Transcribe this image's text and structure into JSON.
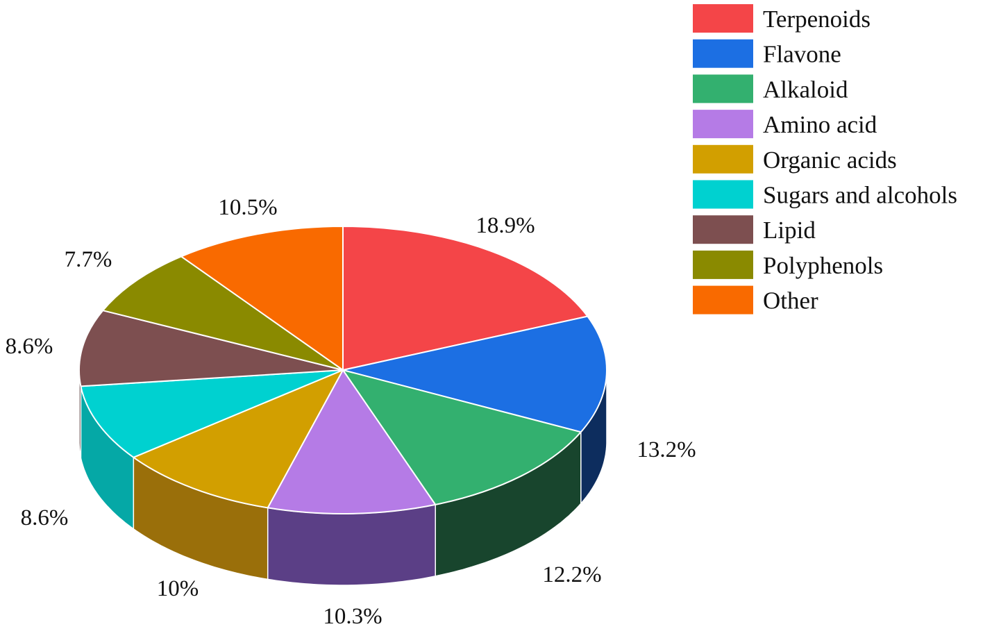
{
  "chart_data": {
    "type": "pie",
    "style": "3d",
    "title": "",
    "legend_position": "top-right",
    "slices": [
      {
        "name": "Terpenoids",
        "value": 18.9,
        "label": "18.9%",
        "color": "#f44548",
        "side_color": "#8a1f22"
      },
      {
        "name": "Flavone",
        "value": 13.2,
        "label": "13.2%",
        "color": "#1c6fe3",
        "side_color": "#0d2d5e"
      },
      {
        "name": "Alkaloid",
        "value": 12.2,
        "label": "12.2%",
        "color": "#33b06f",
        "side_color": "#18452d"
      },
      {
        "name": "Amino acid",
        "value": 10.3,
        "label": "10.3%",
        "color": "#b57be6",
        "side_color": "#5b3f86"
      },
      {
        "name": "Organic acids",
        "value": 10,
        "label": "10%",
        "color": "#d29f00",
        "side_color": "#9a6f0a"
      },
      {
        "name": "Sugars and alcohols",
        "value": 8.6,
        "label": "8.6%",
        "color": "#00d1d0",
        "side_color": "#05a8a6"
      },
      {
        "name": "Lipid",
        "value": 8.6,
        "label": "8.6%",
        "color": "#7d4f50",
        "side_color": "#4d2e2f"
      },
      {
        "name": "Polyphenols",
        "value": 7.7,
        "label": "7.7%",
        "color": "#8a8a00",
        "side_color": "#555500"
      },
      {
        "name": "Other",
        "value": 10.5,
        "label": "10.5%",
        "color": "#f96a00",
        "side_color": "#a84600"
      }
    ]
  }
}
